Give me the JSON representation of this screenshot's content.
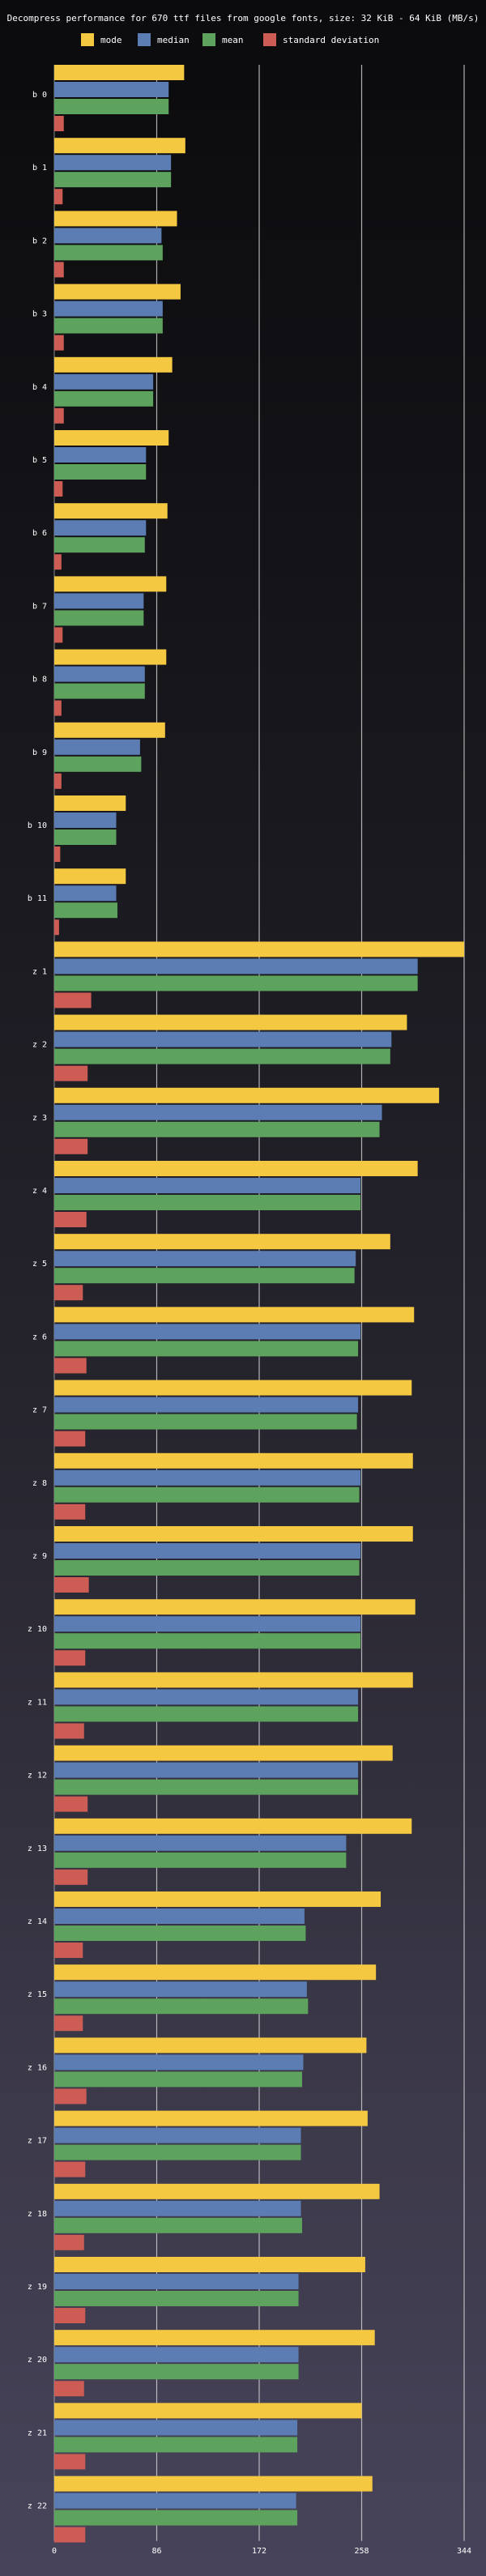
{
  "chart_data": {
    "type": "bar",
    "orientation": "horizontal",
    "title": "Decompress performance for 670 ttf files from google fonts, size: 32 KiB - 64 KiB (MB/s)",
    "xlabel": "",
    "ylabel": "",
    "xlim": [
      0,
      344
    ],
    "xticks": [
      0,
      86,
      172,
      258,
      344
    ],
    "grid": "vertical",
    "legend_position": "top",
    "categories": [
      "b 0",
      "b 1",
      "b 2",
      "b 3",
      "b 4",
      "b 5",
      "b 6",
      "b 7",
      "b 8",
      "b 9",
      "b 10",
      "b 11",
      "z 1",
      "z 2",
      "z 3",
      "z 4",
      "z 5",
      "z 6",
      "z 7",
      "z 8",
      "z 9",
      "z 10",
      "z 11",
      "z 12",
      "z 13",
      "z 14",
      "z 15",
      "z 16",
      "z 17",
      "z 18",
      "z 19",
      "z 20",
      "z 21",
      "z 22"
    ],
    "series": [
      {
        "name": "mode",
        "color": "#f5c842",
        "values": [
          109,
          110,
          103,
          106,
          99,
          96,
          95,
          94,
          94,
          93,
          60,
          60,
          344,
          296,
          323,
          305,
          282,
          302,
          300,
          301,
          301,
          303,
          301,
          284,
          300,
          274,
          270,
          262,
          263,
          273,
          261,
          269,
          258,
          267
        ]
      },
      {
        "name": "median",
        "color": "#5b7db3",
        "values": [
          96,
          98,
          90,
          91,
          83,
          77,
          77,
          75,
          76,
          72,
          52,
          52,
          305,
          283,
          275,
          257,
          253,
          257,
          255,
          257,
          257,
          257,
          255,
          255,
          245,
          210,
          212,
          209,
          207,
          207,
          205,
          205,
          204,
          203
        ]
      },
      {
        "name": "mean",
        "color": "#5ea35d",
        "values": [
          96,
          98,
          91,
          91,
          83,
          77,
          76,
          75,
          76,
          73,
          52,
          53,
          305,
          282,
          273,
          257,
          252,
          255,
          254,
          256,
          256,
          257,
          255,
          255,
          245,
          211,
          213,
          208,
          207,
          208,
          205,
          205,
          204,
          204
        ]
      },
      {
        "name": "standard deviation",
        "color": "#cc5c54",
        "values": [
          8,
          7,
          8,
          8,
          8,
          7,
          6,
          7,
          6,
          6,
          5,
          4,
          31,
          28,
          28,
          27,
          24,
          27,
          26,
          26,
          29,
          26,
          25,
          28,
          28,
          24,
          24,
          27,
          26,
          25,
          26,
          25,
          26,
          26
        ]
      }
    ]
  }
}
